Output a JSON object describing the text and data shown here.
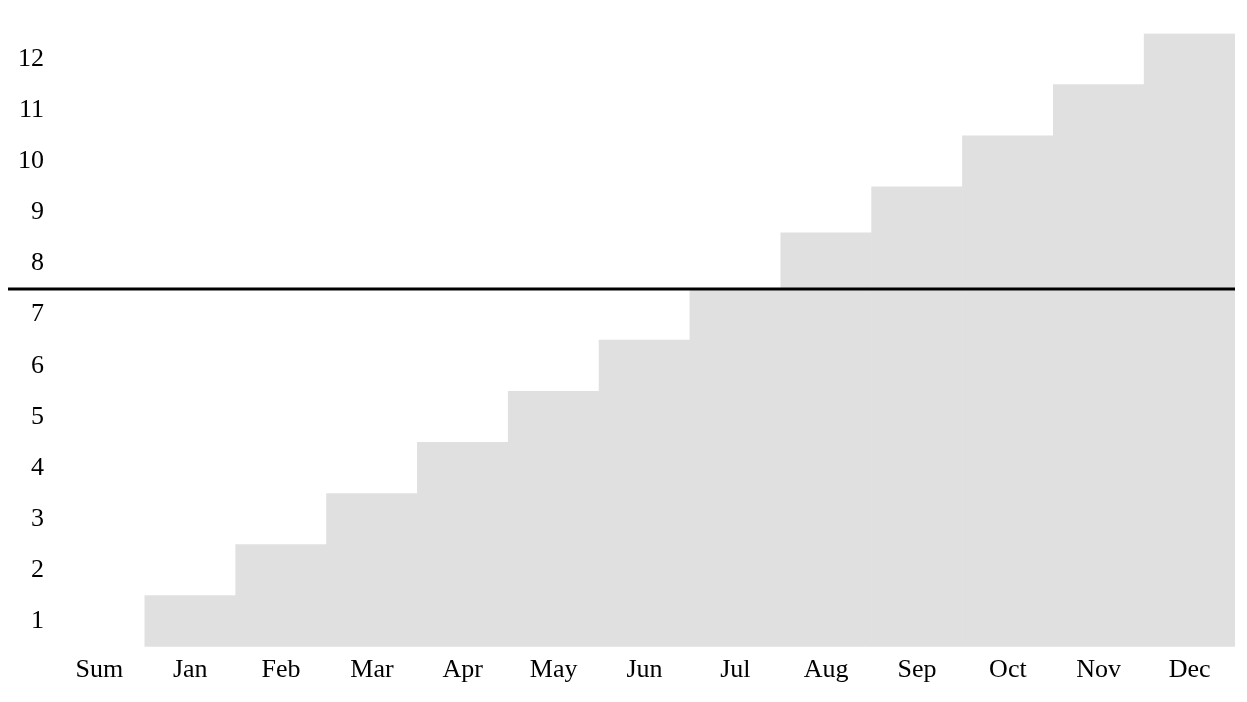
{
  "chart_data": {
    "type": "bar",
    "categories": [
      "Sum",
      "Jan",
      "Feb",
      "Mar",
      "Apr",
      "May",
      "Jun",
      "Jul",
      "Aug",
      "Sep",
      "Oct",
      "Nov",
      "Dec"
    ],
    "values": [
      null,
      1,
      2,
      3,
      4,
      5,
      6,
      7,
      8.1,
      9,
      10,
      11,
      12
    ],
    "color": "#e0e0e0",
    "yticks": [
      {
        "value": 0.5,
        "label": "1"
      },
      {
        "value": 1.5,
        "label": "2"
      },
      {
        "value": 2.5,
        "label": "3"
      },
      {
        "value": 3.5,
        "label": "4"
      },
      {
        "value": 4.5,
        "label": "5"
      },
      {
        "value": 5.5,
        "label": "6"
      },
      {
        "value": 6.5,
        "label": "7"
      },
      {
        "value": 7.5,
        "label": "8"
      },
      {
        "value": 8.5,
        "label": "9"
      },
      {
        "value": 9.5,
        "label": "10"
      },
      {
        "value": 10.5,
        "label": "11"
      },
      {
        "value": 11.5,
        "label": "12"
      }
    ],
    "ylim": [
      0,
      12
    ],
    "ref_lines": [
      {
        "axis": "y",
        "value": 7,
        "color": "#000000"
      }
    ],
    "grid": false,
    "legend": false
  }
}
